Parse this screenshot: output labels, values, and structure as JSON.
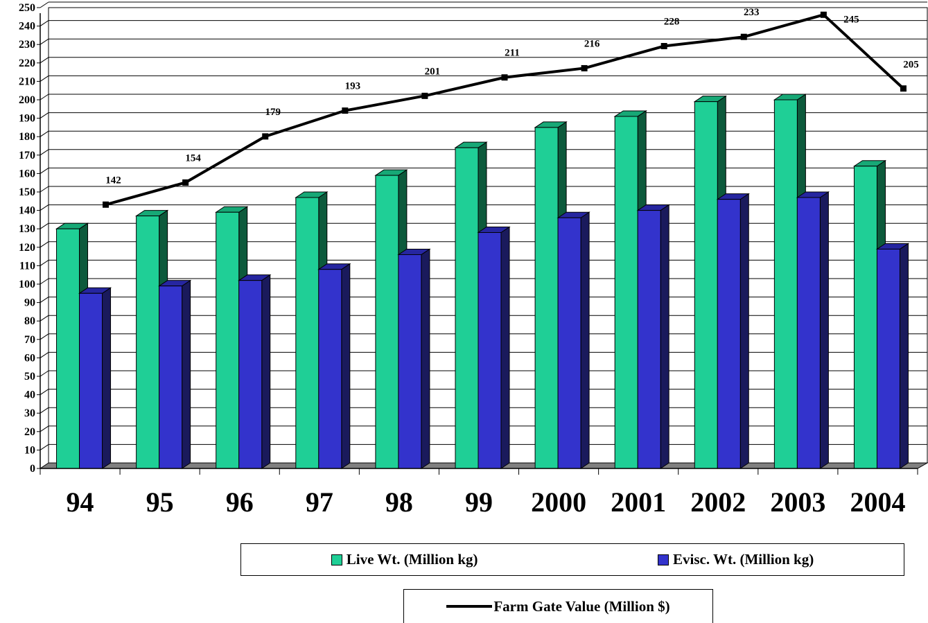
{
  "chart_data": {
    "type": "bar",
    "categories": [
      "94",
      "95",
      "96",
      "97",
      "98",
      "99",
      "2000",
      "2001",
      "2002",
      "2003",
      "2004"
    ],
    "series": [
      {
        "name": "Live Wt. (Million kg)",
        "type": "bar",
        "color": "#1fcf96",
        "side_color": "#0d5a3c",
        "top_color": "#17a876",
        "values": [
          130,
          137,
          139,
          147,
          159,
          174,
          185,
          191,
          199,
          200,
          164
        ]
      },
      {
        "name": "Evisc. Wt. (Million kg)",
        "type": "bar",
        "color": "#3333cc",
        "side_color": "#1a1a5c",
        "top_color": "#2626a0",
        "values": [
          95,
          99,
          102,
          108,
          116,
          128,
          136,
          140,
          146,
          147,
          119
        ]
      },
      {
        "name": "Farm Gate Value (Million $)",
        "type": "line",
        "color": "#000000",
        "values": [
          142,
          154,
          179,
          193,
          201,
          211,
          216,
          228,
          233,
          245,
          205
        ],
        "labels": [
          "142",
          "154",
          "179",
          "193",
          "201",
          "211",
          "216",
          "228",
          "233",
          "245",
          "205"
        ]
      }
    ],
    "ylim": [
      0,
      250
    ],
    "ytick_step": 10,
    "grid": true,
    "legend_position": "bottom"
  }
}
